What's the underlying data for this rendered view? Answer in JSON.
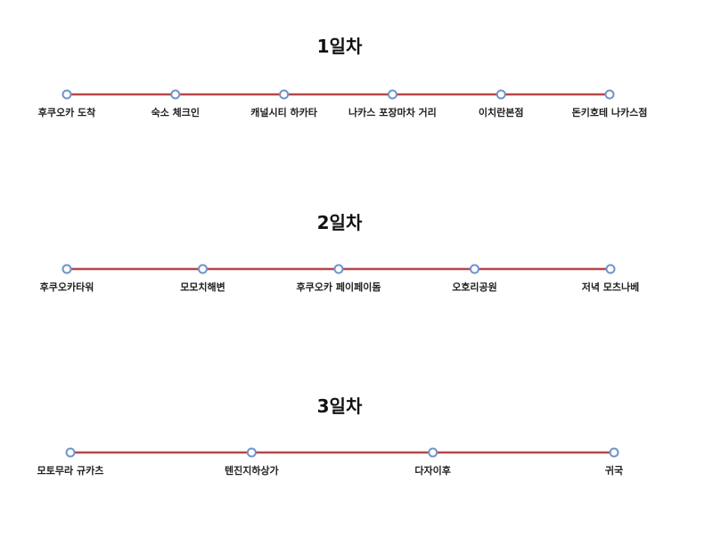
{
  "days": [
    {
      "title": "1일차",
      "stops": [
        "후쿠오카 도착",
        "숙소 체크인",
        "캐널시티 하카타",
        "나카스 포장마차 거리",
        "이치란본점",
        "돈키호테 나카스점"
      ]
    },
    {
      "title": "2일차",
      "stops": [
        "후쿠오카타워",
        "모모치해변",
        "후쿠오카 페이페이돔",
        "오호리공원",
        "저녁 모츠나베"
      ]
    },
    {
      "title": "3일차",
      "stops": [
        "모토무라 규카츠",
        "텐진지하상가",
        "다자이후",
        "귀국"
      ]
    }
  ]
}
